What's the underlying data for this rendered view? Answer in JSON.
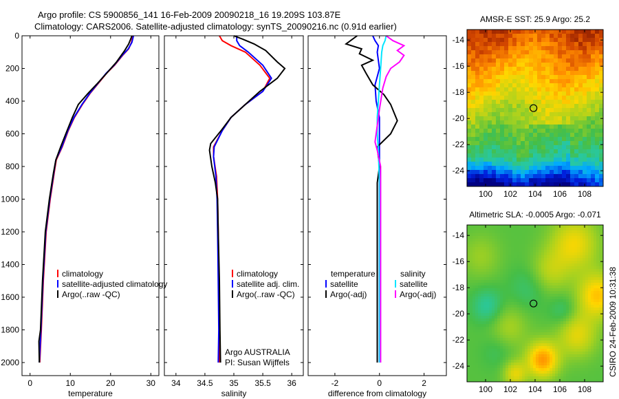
{
  "header": {
    "line1": "Argo profile: CS 5900856_141 16-Feb-2009 20090218_16 19.209S 103.87E",
    "line2": "Climatology: CARS2006. Satellite-adjusted climatology: synTS_20090216.nc (0.91d earlier)"
  },
  "side_label": "CSIRO 24-Feb-2009 10:31:38",
  "colors": {
    "clim": "#ff0000",
    "sat": "#0000ff",
    "argo": "#000000",
    "sal_sat": "#00e5ff",
    "sal_argo": "#ff00ff"
  },
  "chart_data": [
    {
      "type": "line",
      "id": "temperature",
      "xlabel": "temperature",
      "xlim": [
        -2,
        32
      ],
      "ylim": [
        0,
        2080
      ],
      "xticks": [
        0,
        10,
        20,
        30
      ],
      "yticks": [
        0,
        200,
        400,
        600,
        800,
        1000,
        1200,
        1400,
        1600,
        1800,
        2000
      ],
      "legend": [
        "climatology",
        "satellite-adjusted climatology",
        "Argo(..raw -QC)"
      ],
      "series": [
        {
          "name": "climatology",
          "color": "#ff0000",
          "points": [
            [
              25.5,
              0
            ],
            [
              25.2,
              40
            ],
            [
              24.5,
              80
            ],
            [
              23,
              120
            ],
            [
              21,
              180
            ],
            [
              19,
              230
            ],
            [
              17,
              290
            ],
            [
              15,
              350
            ],
            [
              13,
              420
            ],
            [
              11,
              500
            ],
            [
              9.5,
              580
            ],
            [
              8,
              680
            ],
            [
              6.5,
              760
            ],
            [
              6,
              840
            ],
            [
              5,
              1000
            ],
            [
              4,
              1200
            ],
            [
              3.3,
              1500
            ],
            [
              2.8,
              1800
            ],
            [
              2.4,
              2000
            ]
          ]
        },
        {
          "name": "satellite",
          "color": "#0000ff",
          "points": [
            [
              25.7,
              0
            ],
            [
              25.3,
              40
            ],
            [
              24.4,
              80
            ],
            [
              22.9,
              120
            ],
            [
              20.9,
              180
            ],
            [
              18.9,
              230
            ],
            [
              16.9,
              290
            ],
            [
              14.9,
              350
            ],
            [
              12.9,
              420
            ],
            [
              10.9,
              500
            ],
            [
              9.4,
              580
            ],
            [
              7.9,
              680
            ],
            [
              6.4,
              760
            ],
            [
              5.9,
              840
            ],
            [
              4.9,
              1000
            ],
            [
              3.9,
              1200
            ],
            [
              3.2,
              1500
            ],
            [
              2.7,
              1800
            ],
            [
              2.3,
              2000
            ]
          ]
        },
        {
          "name": "Argo",
          "color": "#000000",
          "points": [
            [
              25.3,
              0
            ],
            [
              25,
              20
            ],
            [
              24.5,
              50
            ],
            [
              23.5,
              90
            ],
            [
              21.5,
              160
            ],
            [
              19,
              230
            ],
            [
              16.8,
              290
            ],
            [
              14.5,
              350
            ],
            [
              12,
              420
            ],
            [
              10.5,
              500
            ],
            [
              9.2,
              580
            ],
            [
              7.6,
              680
            ],
            [
              6.4,
              760
            ],
            [
              5.8,
              840
            ],
            [
              4.8,
              1000
            ],
            [
              3.8,
              1200
            ],
            [
              3.1,
              1500
            ],
            [
              2.6,
              1800
            ],
            [
              2.2,
              1870
            ],
            [
              2.3,
              2000
            ]
          ]
        }
      ]
    },
    {
      "type": "line",
      "id": "salinity",
      "xlabel": "salinity",
      "xlim": [
        33.8,
        36.2
      ],
      "ylim": [
        0,
        2080
      ],
      "xticks": [
        34,
        34.5,
        35,
        35.5,
        36
      ],
      "legend": [
        "climatology",
        "satellite adj. clim.",
        "Argo(..raw -QC)"
      ],
      "annotation": [
        "Argo AUSTRALIA",
        "PI: Susan Wijffels"
      ],
      "series": [
        {
          "name": "climatology",
          "color": "#ff0000",
          "points": [
            [
              34.75,
              0
            ],
            [
              34.8,
              30
            ],
            [
              34.95,
              60
            ],
            [
              35.2,
              100
            ],
            [
              35.45,
              180
            ],
            [
              35.62,
              260
            ],
            [
              35.5,
              340
            ],
            [
              35.2,
              420
            ],
            [
              34.95,
              500
            ],
            [
              34.8,
              580
            ],
            [
              34.65,
              680
            ],
            [
              34.65,
              740
            ],
            [
              34.7,
              860
            ],
            [
              34.72,
              1000
            ],
            [
              34.73,
              1200
            ],
            [
              34.74,
              1500
            ],
            [
              34.75,
              1800
            ],
            [
              34.75,
              2000
            ]
          ]
        },
        {
          "name": "satellite",
          "color": "#0000ff",
          "points": [
            [
              35.05,
              0
            ],
            [
              35.05,
              30
            ],
            [
              35.1,
              60
            ],
            [
              35.25,
              100
            ],
            [
              35.5,
              180
            ],
            [
              35.65,
              260
            ],
            [
              35.5,
              340
            ],
            [
              35.2,
              420
            ],
            [
              34.95,
              500
            ],
            [
              34.8,
              580
            ],
            [
              34.66,
              680
            ],
            [
              34.65,
              740
            ],
            [
              34.69,
              860
            ],
            [
              34.71,
              1000
            ],
            [
              34.72,
              1200
            ],
            [
              34.73,
              1500
            ],
            [
              34.74,
              1800
            ],
            [
              34.73,
              2000
            ]
          ]
        },
        {
          "name": "Argo",
          "color": "#000000",
          "points": [
            [
              35.0,
              0
            ],
            [
              35.15,
              20
            ],
            [
              35.35,
              50
            ],
            [
              35.55,
              90
            ],
            [
              35.75,
              160
            ],
            [
              35.88,
              200
            ],
            [
              35.75,
              260
            ],
            [
              35.45,
              340
            ],
            [
              35.2,
              420
            ],
            [
              34.95,
              500
            ],
            [
              34.78,
              580
            ],
            [
              34.6,
              660
            ],
            [
              34.58,
              700
            ],
            [
              34.62,
              800
            ],
            [
              34.68,
              900
            ],
            [
              34.72,
              1000
            ],
            [
              34.73,
              1200
            ],
            [
              34.75,
              1500
            ],
            [
              34.76,
              1800
            ],
            [
              34.77,
              2000
            ]
          ]
        }
      ]
    },
    {
      "type": "line",
      "id": "difference",
      "xlabel": "difference from climatology",
      "xlim": [
        -3.2,
        3.0
      ],
      "ylim": [
        0,
        2080
      ],
      "xticks": [
        -2,
        0,
        2
      ],
      "legend_left_title": "temperature",
      "legend_right_title": "salinity",
      "legend_left": [
        "satellite",
        "Argo(-adj)"
      ],
      "legend_right": [
        "satellite",
        "Argo(-adj)"
      ],
      "series": [
        {
          "name": "temp satellite",
          "color": "#0000ff",
          "points": [
            [
              -0.3,
              0
            ],
            [
              -0.2,
              30
            ],
            [
              -0.05,
              60
            ],
            [
              -0.1,
              100
            ],
            [
              0.0,
              200
            ],
            [
              -0.2,
              300
            ],
            [
              -0.15,
              400
            ],
            [
              0.0,
              500
            ],
            [
              0.0,
              600
            ],
            [
              0.0,
              700
            ],
            [
              0.0,
              800
            ],
            [
              0.0,
              1000
            ],
            [
              0.0,
              1500
            ],
            [
              0.0,
              2000
            ]
          ]
        },
        {
          "name": "temp Argo",
          "color": "#000000",
          "points": [
            [
              -1.0,
              0
            ],
            [
              -1.5,
              50
            ],
            [
              -0.8,
              80
            ],
            [
              -0.9,
              110
            ],
            [
              -0.3,
              150
            ],
            [
              -0.8,
              180
            ],
            [
              -0.6,
              230
            ],
            [
              -0.3,
              300
            ],
            [
              0.2,
              360
            ],
            [
              0.5,
              420
            ],
            [
              0.8,
              520
            ],
            [
              0.5,
              600
            ],
            [
              -0.1,
              680
            ],
            [
              0.0,
              800
            ],
            [
              -0.1,
              900
            ],
            [
              -0.1,
              1100
            ],
            [
              -0.1,
              1300
            ],
            [
              -0.1,
              1500
            ],
            [
              -0.1,
              1800
            ],
            [
              -0.1,
              1900
            ],
            [
              -0.1,
              2000
            ]
          ]
        },
        {
          "name": "sal satellite",
          "color": "#00e5ff",
          "points": [
            [
              0.3,
              0
            ],
            [
              0.25,
              30
            ],
            [
              0.15,
              60
            ],
            [
              0.1,
              100
            ],
            [
              0.05,
              200
            ],
            [
              0.0,
              300
            ],
            [
              -0.05,
              400
            ],
            [
              -0.1,
              500
            ],
            [
              -0.1,
              600
            ],
            [
              -0.05,
              700
            ],
            [
              0.0,
              900
            ],
            [
              0.0,
              1200
            ],
            [
              0.0,
              1500
            ],
            [
              0.0,
              2000
            ]
          ]
        },
        {
          "name": "sal Argo",
          "color": "#ff00ff",
          "points": [
            [
              0.3,
              0
            ],
            [
              0.6,
              30
            ],
            [
              1.1,
              60
            ],
            [
              0.8,
              90
            ],
            [
              1.1,
              120
            ],
            [
              0.9,
              160
            ],
            [
              0.5,
              200
            ],
            [
              0.3,
              250
            ],
            [
              0.15,
              320
            ],
            [
              0.0,
              450
            ],
            [
              -0.15,
              600
            ],
            [
              -0.2,
              650
            ],
            [
              -0.1,
              700
            ],
            [
              0.05,
              800
            ],
            [
              0.05,
              1000
            ],
            [
              0.05,
              1500
            ],
            [
              0.05,
              2000
            ]
          ]
        }
      ]
    },
    {
      "type": "heatmap",
      "id": "sst",
      "title": "AMSR-E SST: 25.9 Argo: 25.2",
      "xlim": [
        98.5,
        109.5
      ],
      "ylim": [
        -25.2,
        -13.2
      ],
      "xticks": [
        100,
        102,
        104,
        106,
        108
      ],
      "yticks": [
        -14,
        -16,
        -18,
        -20,
        -22,
        -24
      ],
      "argo_position": [
        103.87,
        -19.209
      ]
    },
    {
      "type": "heatmap",
      "id": "sla",
      "title": "Altimetric SLA: -0.0005 Argo: -0.071",
      "xlim": [
        98.5,
        109.5
      ],
      "ylim": [
        -25.2,
        -13.2
      ],
      "xticks": [
        100,
        102,
        104,
        106,
        108
      ],
      "yticks": [
        -14,
        -16,
        -18,
        -20,
        -22,
        -24
      ],
      "argo_position": [
        103.87,
        -19.209
      ]
    }
  ]
}
